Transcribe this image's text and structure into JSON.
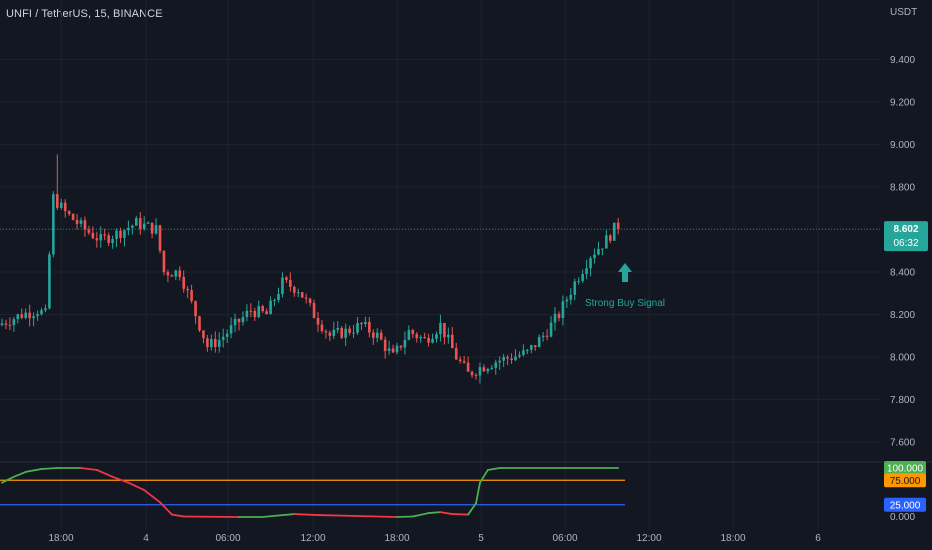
{
  "header": {
    "title": "UNFI / TetherUS, 15, BINANCE",
    "currency": "USDT"
  },
  "colors": {
    "background": "#131722",
    "grid": "#1e222d",
    "up": "#26a69a",
    "down": "#ef5350",
    "axis_text": "#b2b5be",
    "osc_line_up": "#4caf50",
    "osc_line_down": "#f23645",
    "level_high": "#ff9800",
    "level_low": "#2962ff"
  },
  "price_badge": {
    "value": "8.602",
    "countdown": "06:32"
  },
  "annotation": {
    "label": "Strong Buy Signal",
    "icon": "up-arrow-icon"
  },
  "chart_data": [
    {
      "type": "candlestick",
      "title": "UNFI / TetherUS, 15, BINANCE",
      "ylabel": "USDT",
      "ylim": [
        7.5,
        9.6
      ],
      "y_ticks": [
        "9.400",
        "9.200",
        "9.000",
        "8.800",
        "8.600",
        "8.400",
        "8.200",
        "8.000",
        "7.800",
        "7.600"
      ],
      "x_ticks": [
        "18:00",
        "4",
        "06:00",
        "12:00",
        "18:00",
        "5",
        "06:00",
        "12:00",
        "18:00",
        "6"
      ],
      "last_price": 8.602,
      "grid": true,
      "anchors": [
        [
          0,
          8.15
        ],
        [
          6,
          8.2
        ],
        [
          10,
          8.22
        ],
        [
          12,
          8.2
        ],
        [
          13,
          8.48
        ],
        [
          14,
          8.75
        ],
        [
          17,
          8.68
        ],
        [
          22,
          8.6
        ],
        [
          26,
          8.55
        ],
        [
          30,
          8.58
        ],
        [
          35,
          8.63
        ],
        [
          40,
          8.6
        ],
        [
          42,
          8.4
        ],
        [
          46,
          8.4
        ],
        [
          50,
          8.2
        ],
        [
          53,
          8.05
        ],
        [
          56,
          8.08
        ],
        [
          60,
          8.15
        ],
        [
          64,
          8.22
        ],
        [
          68,
          8.2
        ],
        [
          72,
          8.35
        ],
        [
          76,
          8.32
        ],
        [
          80,
          8.2
        ],
        [
          84,
          8.1
        ],
        [
          88,
          8.12
        ],
        [
          92,
          8.15
        ],
        [
          96,
          8.1
        ],
        [
          100,
          8.0
        ],
        [
          104,
          8.12
        ],
        [
          108,
          8.08
        ],
        [
          112,
          8.15
        ],
        [
          116,
          8.0
        ],
        [
          119,
          7.92
        ],
        [
          122,
          7.95
        ],
        [
          126,
          7.98
        ],
        [
          130,
          8.0
        ],
        [
          134,
          8.02
        ],
        [
          138,
          8.1
        ],
        [
          142,
          8.2
        ],
        [
          146,
          8.35
        ],
        [
          150,
          8.48
        ],
        [
          154,
          8.55
        ],
        [
          156,
          8.602
        ]
      ],
      "annotations": [
        "Strong Buy Signal"
      ]
    },
    {
      "type": "line",
      "title": "",
      "ylim": [
        0,
        100
      ],
      "levels": [
        {
          "value": 100,
          "label": "100.000",
          "color": "#4caf50"
        },
        {
          "value": 75,
          "label": "75.000",
          "color": "#ff9800"
        },
        {
          "value": 25,
          "label": "25.000",
          "color": "#2962ff"
        }
      ],
      "axis_zero_label": "0.000",
      "series_points": [
        [
          0,
          70
        ],
        [
          3,
          82
        ],
        [
          6,
          92
        ],
        [
          10,
          98
        ],
        [
          14,
          100
        ],
        [
          20,
          100
        ],
        [
          24,
          96
        ],
        [
          28,
          82
        ],
        [
          32,
          70
        ],
        [
          36,
          55
        ],
        [
          40,
          30
        ],
        [
          43,
          5
        ],
        [
          46,
          1
        ],
        [
          60,
          0
        ],
        [
          66,
          0
        ],
        [
          70,
          3
        ],
        [
          74,
          6
        ],
        [
          80,
          4
        ],
        [
          90,
          2
        ],
        [
          100,
          0
        ],
        [
          104,
          1
        ],
        [
          108,
          8
        ],
        [
          111,
          10
        ],
        [
          114,
          6
        ],
        [
          118,
          5
        ],
        [
          120,
          28
        ],
        [
          121,
          70
        ],
        [
          123,
          96
        ],
        [
          126,
          100
        ],
        [
          156,
          100
        ]
      ]
    }
  ]
}
